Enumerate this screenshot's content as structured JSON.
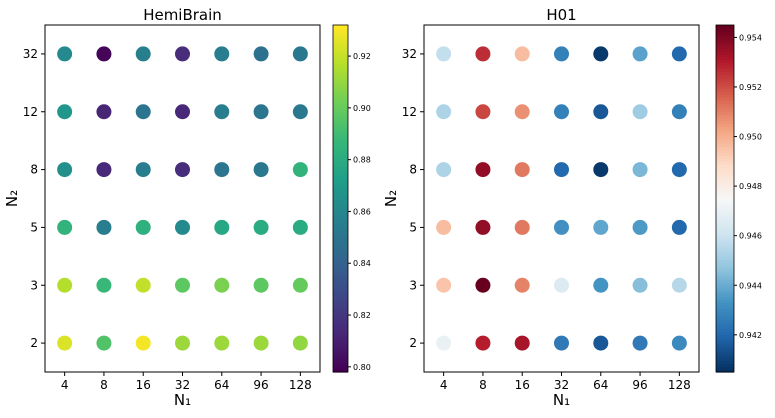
{
  "chart_data": [
    {
      "type": "scatter",
      "title": "HemiBrain",
      "xlabel": "N₁",
      "ylabel": "N₂",
      "x_categories": [
        "4",
        "8",
        "16",
        "32",
        "64",
        "96",
        "128"
      ],
      "y_categories": [
        "2",
        "3",
        "5",
        "8",
        "12",
        "32"
      ],
      "colormap": "viridis",
      "colorbar": {
        "min": 0.798,
        "max": 0.932,
        "ticks": [
          "0.80",
          "0.82",
          "0.84",
          "0.86",
          "0.88",
          "0.90",
          "0.92"
        ]
      },
      "values": [
        [
          0.925,
          0.895,
          0.93,
          0.912,
          0.912,
          0.912,
          0.91
        ],
        [
          0.917,
          0.888,
          0.92,
          0.898,
          0.905,
          0.898,
          0.9
        ],
        [
          0.885,
          0.855,
          0.883,
          0.862,
          0.878,
          0.88,
          0.88
        ],
        [
          0.865,
          0.813,
          0.855,
          0.815,
          0.85,
          0.852,
          0.885
        ],
        [
          0.868,
          0.812,
          0.85,
          0.813,
          0.855,
          0.85,
          0.852
        ],
        [
          0.862,
          0.8,
          0.856,
          0.815,
          0.855,
          0.848,
          0.852
        ]
      ]
    },
    {
      "type": "scatter",
      "title": "H01",
      "xlabel": "N₁",
      "ylabel": "N₂",
      "x_categories": [
        "4",
        "8",
        "16",
        "32",
        "64",
        "96",
        "128"
      ],
      "y_categories": [
        "2",
        "3",
        "5",
        "8",
        "12",
        "32"
      ],
      "colormap": "RdBu_r",
      "colorbar": {
        "min": 0.9405,
        "max": 0.9545,
        "ticks": [
          "0.942",
          "0.944",
          "0.946",
          "0.948",
          "0.950",
          "0.952",
          "0.954"
        ]
      },
      "values": [
        [
          0.947,
          0.953,
          0.9533,
          0.9425,
          0.9415,
          0.9425,
          0.943
        ],
        [
          0.9495,
          0.9545,
          0.951,
          0.9465,
          0.9433,
          0.9445,
          0.9455
        ],
        [
          0.9497,
          0.9537,
          0.9512,
          0.9432,
          0.9438,
          0.9435,
          0.942
        ],
        [
          0.9453,
          0.9537,
          0.9512,
          0.942,
          0.9407,
          0.9443,
          0.942
        ],
        [
          0.9453,
          0.9522,
          0.9507,
          0.9427,
          0.9415,
          0.945,
          0.9427
        ],
        [
          0.9458,
          0.9527,
          0.9497,
          0.9427,
          0.9407,
          0.9437,
          0.942
        ]
      ]
    }
  ]
}
